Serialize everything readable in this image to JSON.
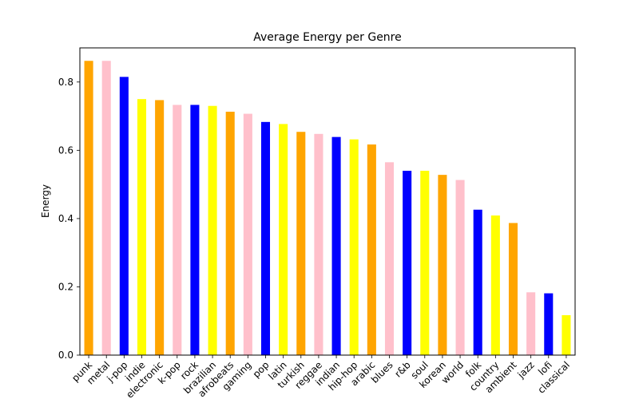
{
  "chart_data": {
    "type": "bar",
    "title": "Average Energy per Genre",
    "xlabel": "",
    "ylabel": "Energy",
    "ylim": [
      0,
      0.9
    ],
    "yticks": [
      0.0,
      0.2,
      0.4,
      0.6,
      0.8
    ],
    "grid": false,
    "colors": [
      "orange",
      "pink",
      "blue",
      "yellow"
    ],
    "categories": [
      "punk",
      "metal",
      "j-pop",
      "indie",
      "electronic",
      "k-pop",
      "rock",
      "brazilian",
      "afrobeats",
      "gaming",
      "pop",
      "latin",
      "turkish",
      "reggae",
      "indian",
      "hip-hop",
      "arabic",
      "blues",
      "r&b",
      "soul",
      "korean",
      "world",
      "folk",
      "country",
      "ambient",
      "jazz",
      "lofi",
      "classical"
    ],
    "values": [
      0.862,
      0.862,
      0.815,
      0.75,
      0.747,
      0.733,
      0.733,
      0.73,
      0.713,
      0.707,
      0.683,
      0.677,
      0.654,
      0.648,
      0.639,
      0.632,
      0.617,
      0.565,
      0.54,
      0.54,
      0.528,
      0.513,
      0.426,
      0.409,
      0.387,
      0.184,
      0.181,
      0.117
    ]
  }
}
